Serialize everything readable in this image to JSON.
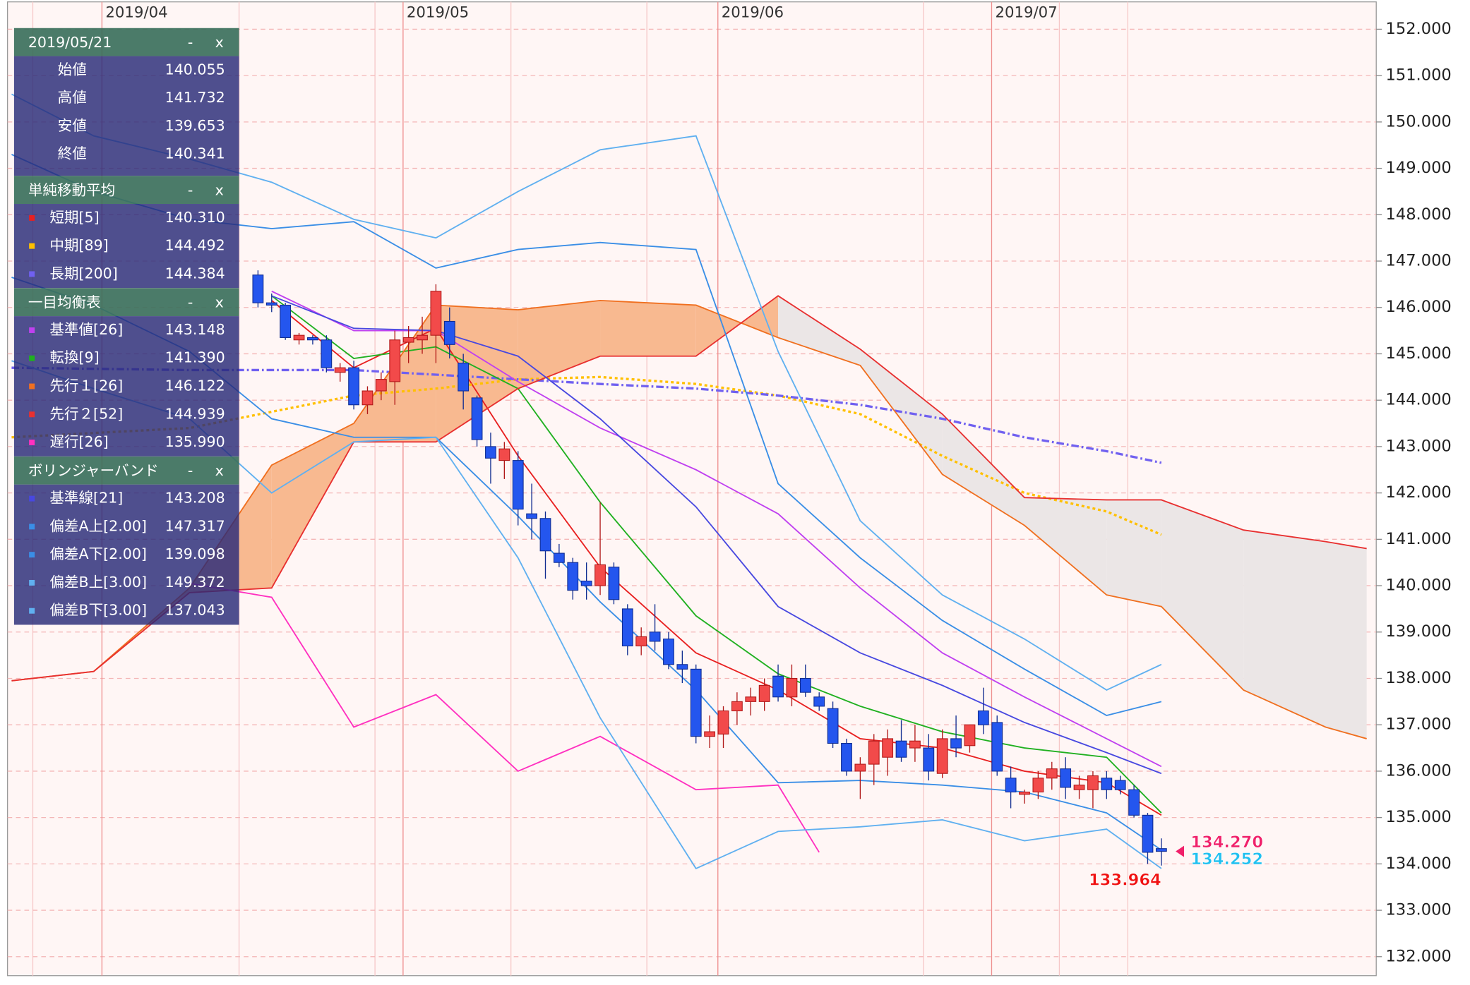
{
  "chart_data": {
    "type": "candlestick",
    "categories": [
      null,
      null,
      null,
      null,
      null,
      null,
      null,
      null,
      null,
      null,
      null,
      null,
      null,
      null,
      null,
      null,
      null,
      null,
      null,
      null,
      null,
      null,
      null,
      null,
      null,
      null,
      null,
      null,
      null,
      null,
      null,
      null,
      null,
      null,
      null,
      null,
      null,
      null,
      null,
      null,
      null,
      null,
      null,
      null,
      null,
      null,
      null,
      null,
      null,
      null,
      null,
      null,
      null,
      null,
      null,
      null,
      null,
      null,
      null,
      null,
      null,
      null,
      null,
      null,
      null,
      null,
      null
    ],
    "open": [
      146.7,
      146.1,
      146.05,
      145.3,
      145.35,
      145.3,
      144.6,
      144.7,
      143.9,
      144.2,
      144.4,
      145.25,
      145.3,
      145.4,
      145.7,
      144.8,
      144.05,
      143.0,
      142.7,
      142.7,
      141.55,
      141.45,
      140.7,
      140.5,
      140.1,
      140.0,
      140.4,
      139.5,
      138.7,
      139.0,
      138.85,
      138.3,
      138.2,
      136.75,
      136.8,
      137.3,
      137.5,
      137.5,
      138.05,
      137.6,
      138.0,
      137.6,
      137.35,
      136.6,
      136.0,
      136.15,
      136.3,
      136.65,
      136.5,
      136.5,
      135.95,
      136.7,
      136.55,
      137.3,
      137.05,
      135.85,
      135.5,
      135.55,
      135.85,
      136.05,
      135.6,
      135.6,
      135.85,
      135.8,
      135.6,
      135.05,
      134.33
    ],
    "high": [
      146.8,
      146.3,
      146.1,
      145.45,
      145.4,
      145.4,
      144.8,
      144.85,
      144.3,
      144.6,
      145.5,
      145.6,
      145.8,
      146.5,
      146.0,
      145.0,
      144.1,
      143.3,
      143.1,
      142.9,
      142.2,
      141.6,
      140.9,
      140.6,
      140.5,
      141.8,
      140.5,
      139.6,
      139.1,
      139.6,
      139.0,
      138.6,
      138.3,
      137.2,
      137.4,
      137.7,
      137.8,
      138.0,
      138.3,
      138.3,
      138.3,
      137.7,
      137.5,
      136.7,
      136.3,
      136.8,
      136.9,
      137.1,
      137.0,
      136.8,
      136.9,
      137.2,
      137.0,
      137.8,
      137.2,
      136.1,
      135.6,
      136.0,
      136.2,
      136.3,
      135.9,
      136.0,
      136.0,
      135.9,
      135.7,
      135.1,
      134.55
    ],
    "low": [
      146.0,
      145.9,
      145.3,
      145.2,
      145.2,
      144.6,
      144.4,
      143.8,
      143.7,
      144.0,
      143.9,
      144.8,
      145.0,
      144.8,
      144.9,
      143.8,
      143.0,
      142.2,
      142.3,
      141.3,
      141.0,
      140.15,
      140.4,
      139.7,
      139.7,
      139.8,
      139.6,
      138.5,
      138.5,
      138.6,
      138.2,
      137.9,
      136.6,
      136.5,
      136.5,
      137.0,
      137.2,
      137.3,
      137.5,
      137.4,
      137.6,
      137.3,
      136.5,
      135.9,
      135.4,
      135.7,
      135.9,
      136.2,
      136.2,
      135.8,
      135.85,
      136.3,
      136.4,
      136.8,
      135.9,
      135.2,
      135.3,
      135.4,
      135.6,
      135.4,
      135.4,
      135.2,
      135.4,
      135.5,
      135.0,
      134.0,
      133.964
    ],
    "close": [
      146.1,
      146.05,
      145.35,
      145.4,
      145.3,
      144.7,
      144.7,
      143.9,
      144.2,
      144.45,
      145.3,
      145.35,
      145.4,
      146.35,
      145.2,
      144.2,
      143.15,
      142.75,
      142.95,
      141.65,
      141.45,
      140.75,
      140.5,
      139.9,
      140.0,
      140.45,
      139.7,
      138.7,
      138.9,
      138.8,
      138.3,
      138.2,
      136.75,
      136.85,
      137.3,
      137.5,
      137.6,
      137.85,
      137.6,
      138.0,
      137.7,
      137.4,
      136.6,
      136.0,
      136.15,
      136.65,
      136.7,
      136.3,
      136.65,
      136.0,
      136.7,
      136.5,
      137.0,
      137.0,
      136.0,
      135.55,
      135.55,
      135.85,
      136.05,
      135.65,
      135.7,
      135.9,
      135.6,
      135.6,
      135.05,
      134.25,
      134.27
    ],
    "up_color": "#f24a4a",
    "down_color": "#2456ee",
    "xlim": [
      -18.3,
      81.7
    ],
    "xticks": [
      {
        "value": -11.4,
        "label": "2019/04"
      },
      {
        "value": 10.6,
        "label": "2019/05"
      },
      {
        "value": 33.6,
        "label": "2019/06"
      },
      {
        "value": 53.6,
        "label": "2019/07"
      }
    ],
    "ylim": [
      131.59,
      152.59
    ],
    "yticks": [
      {
        "value": 132,
        "label": "132.000"
      },
      {
        "value": 133,
        "label": "133.000"
      },
      {
        "value": 134,
        "label": "134.000"
      },
      {
        "value": 135,
        "label": "135.000"
      },
      {
        "value": 136,
        "label": "136.000"
      },
      {
        "value": 137,
        "label": "137.000"
      },
      {
        "value": 138,
        "label": "138.000"
      },
      {
        "value": 139,
        "label": "139.000"
      },
      {
        "value": 140,
        "label": "140.000"
      },
      {
        "value": 141,
        "label": "141.000"
      },
      {
        "value": 142,
        "label": "142.000"
      },
      {
        "value": 143,
        "label": "143.000"
      },
      {
        "value": 144,
        "label": "144.000"
      },
      {
        "value": 145,
        "label": "145.000"
      },
      {
        "value": 146,
        "label": "146.000"
      },
      {
        "value": 147,
        "label": "147.000"
      },
      {
        "value": 148,
        "label": "148.000"
      },
      {
        "value": 149,
        "label": "149.000"
      },
      {
        "value": 150,
        "label": "150.000"
      },
      {
        "value": 151,
        "label": "151.000"
      },
      {
        "value": 152,
        "label": "152.000"
      }
    ],
    "grid": true,
    "cloud_colors": {
      "bull": "#f8b990",
      "bear": "#ebe6e6"
    },
    "ohlc_panel": {
      "title": "2019/05/21",
      "rows": [
        {
          "label": "始値",
          "value": "140.055"
        },
        {
          "label": "高値",
          "value": "141.732"
        },
        {
          "label": "安値",
          "value": "139.653"
        },
        {
          "label": "終値",
          "value": "140.341"
        }
      ]
    },
    "panel_controls": [
      "-",
      "x"
    ],
    "indicator_groups": [
      {
        "title": "単純移動平均",
        "series": [
          {
            "name": "短期[5]",
            "readout": "140.310",
            "color": "#e82020",
            "x": [
              1,
              7,
              13,
              19,
              25,
              32,
              38,
              44,
              50,
              56,
              62,
              66
            ],
            "values": [
              146.15,
              144.7,
              145.55,
              142.8,
              140.4,
              138.55,
              137.75,
              136.7,
              136.5,
              136.0,
              135.75,
              135.05
            ]
          },
          {
            "name": "中期[89]",
            "readout": "144.492",
            "color": "#ffc000",
            "style": "dotted",
            "x": [
              -18,
              -5,
              7,
              13,
              19,
              25,
              32,
              38,
              44,
              50,
              56,
              62,
              66
            ],
            "values": [
              143.2,
              143.4,
              144.1,
              144.25,
              144.45,
              144.5,
              144.35,
              144.1,
              143.7,
              142.8,
              142.0,
              141.6,
              141.1
            ]
          },
          {
            "name": "長期[200]",
            "readout": "144.384",
            "color": "#7060f0",
            "style": "dashdot",
            "x": [
              -18,
              -5,
              7,
              13,
              19,
              25,
              32,
              38,
              44,
              50,
              56,
              62,
              66
            ],
            "values": [
              144.7,
              144.65,
              144.65,
              144.55,
              144.45,
              144.35,
              144.25,
              144.1,
              143.9,
              143.6,
              143.2,
              142.9,
              142.65
            ]
          }
        ]
      },
      {
        "title": "一目均衡表",
        "series": [
          {
            "name": "基準値[26]",
            "readout": "143.148",
            "color": "#c040f0",
            "x": [
              1,
              7,
              13,
              19,
              25,
              32,
              38,
              44,
              50,
              56,
              62,
              66
            ],
            "values": [
              146.35,
              145.5,
              145.5,
              144.4,
              143.4,
              142.5,
              141.55,
              139.95,
              138.55,
              137.6,
              136.7,
              136.1
            ]
          },
          {
            "name": "転換[9]",
            "readout": "141.390",
            "color": "#20b020",
            "x": [
              1,
              7,
              13,
              19,
              25,
              32,
              38,
              44,
              50,
              56,
              62,
              66
            ],
            "values": [
              146.25,
              144.9,
              145.15,
              144.25,
              141.8,
              139.35,
              138.1,
              137.4,
              136.85,
              136.5,
              136.3,
              135.1
            ]
          },
          {
            "name": "先行１[26]",
            "readout": "146.122",
            "color": "#f07020",
            "x": [
              -18,
              -12,
              -5,
              1,
              7,
              13,
              19,
              25,
              32,
              38,
              44,
              50,
              56,
              62,
              66,
              72,
              78,
              81
            ],
            "values": [
              137.95,
              138.15,
              139.95,
              142.6,
              143.5,
              146.05,
              145.95,
              146.15,
              146.05,
              145.35,
              144.75,
              142.4,
              141.3,
              139.8,
              139.55,
              137.75,
              136.95,
              136.7
            ]
          },
          {
            "name": "先行２[52]",
            "readout": "144.939",
            "color": "#e83030",
            "x": [
              -18,
              -12,
              -5,
              1,
              7,
              13,
              19,
              25,
              32,
              38,
              44,
              50,
              56,
              62,
              66,
              72,
              78,
              81
            ],
            "values": [
              137.95,
              138.15,
              139.85,
              139.95,
              143.1,
              143.1,
              144.25,
              144.95,
              144.95,
              146.25,
              145.1,
              143.7,
              141.9,
              141.85,
              141.85,
              141.2,
              140.95,
              140.8
            ]
          },
          {
            "name": "遅行[26]",
            "readout": "135.990",
            "color": "#ff30c0",
            "x": [
              -5,
              1,
              7,
              13,
              19,
              25,
              32,
              38,
              41
            ],
            "values": [
              140.05,
              139.75,
              136.95,
              137.65,
              136.0,
              136.75,
              135.6,
              135.7,
              134.25
            ]
          }
        ]
      },
      {
        "title": "ボリンジャーバンド",
        "series": [
          {
            "name": "基準線[21]",
            "readout": "143.208",
            "color": "#4848e0",
            "x": [
              1,
              7,
              13,
              19,
              25,
              32,
              38,
              44,
              50,
              56,
              62,
              66
            ],
            "values": [
              146.25,
              145.55,
              145.5,
              144.95,
              143.6,
              141.7,
              139.55,
              138.55,
              137.85,
              137.05,
              136.4,
              135.95
            ]
          },
          {
            "name": "偏差A上[2.00]",
            "readout": "147.317",
            "color": "#3a8ee6",
            "x": [
              -18,
              -12,
              -5,
              1,
              7,
              13,
              19,
              25,
              32,
              38,
              44,
              50,
              56,
              62,
              66
            ],
            "values": [
              149.3,
              148.5,
              147.9,
              147.7,
              147.85,
              146.85,
              147.25,
              147.4,
              147.25,
              142.2,
              140.6,
              139.25,
              138.2,
              137.2,
              137.5
            ]
          },
          {
            "name": "偏差A下[2.00]",
            "readout": "139.098",
            "color": "#3a8ee6",
            "x": [
              -18,
              -12,
              -5,
              1,
              7,
              13,
              19,
              25,
              32,
              38,
              44,
              50,
              56,
              62,
              66
            ],
            "values": [
              146.65,
              146.05,
              145.05,
              143.6,
              143.2,
              143.2,
              141.5,
              139.65,
              137.75,
              135.75,
              135.8,
              135.7,
              135.55,
              135.1,
              134.3
            ]
          },
          {
            "name": "偏差B上[3.00]",
            "readout": "149.372",
            "color": "#60b0f0",
            "x": [
              -18,
              -12,
              -5,
              1,
              7,
              13,
              19,
              25,
              32,
              38,
              44,
              50,
              56,
              62,
              66
            ],
            "values": [
              150.6,
              149.7,
              149.2,
              148.7,
              147.9,
              147.5,
              148.5,
              149.4,
              149.7,
              145.05,
              141.4,
              139.8,
              138.85,
              137.75,
              138.3
            ]
          },
          {
            "name": "偏差B下[3.00]",
            "readout": "137.043",
            "color": "#60b0f0",
            "x": [
              -18,
              -12,
              -5,
              1,
              7,
              13,
              19,
              25,
              32,
              38,
              44,
              50,
              56,
              62,
              66
            ],
            "values": [
              144.85,
              144.25,
              143.6,
              142.0,
              143.1,
              143.2,
              140.6,
              137.15,
              133.9,
              134.7,
              134.8,
              134.95,
              134.5,
              134.75,
              133.9
            ]
          }
        ]
      }
    ],
    "annotations": [
      {
        "value": 134.27,
        "label": "134.270",
        "color": "#f0206a"
      },
      {
        "value": 134.252,
        "label": "134.252",
        "color": "#20c0f0"
      },
      {
        "value": 133.964,
        "label": "133.964",
        "color": "#f01010"
      }
    ]
  }
}
